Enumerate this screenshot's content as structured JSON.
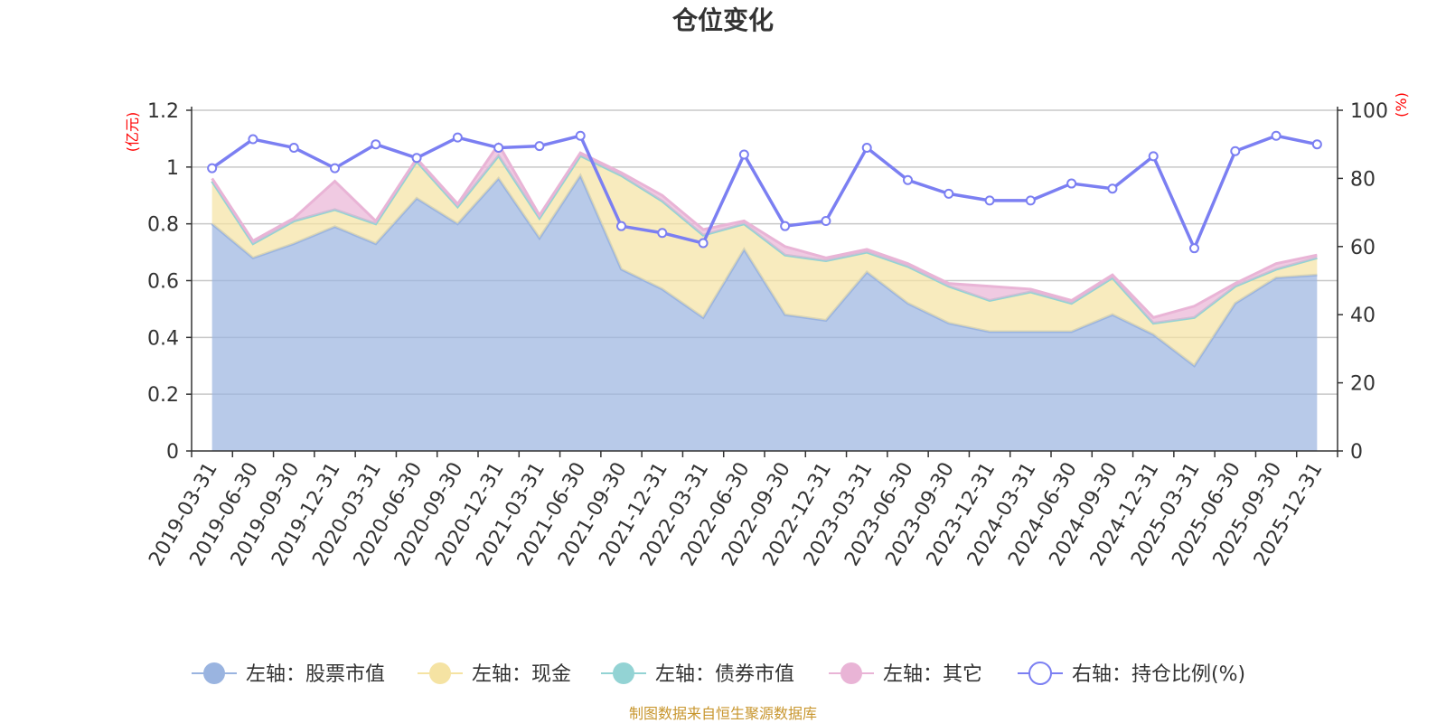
{
  "chart_data": {
    "type": "area",
    "title": "仓位变化",
    "left_axis": {
      "unit": "(亿元)",
      "ylim": [
        0,
        1.2
      ],
      "ticks": [
        "0",
        "0.2",
        "0.4",
        "0.6",
        "0.8",
        "1",
        "1.2"
      ]
    },
    "right_axis": {
      "unit": "(%)",
      "ylim": [
        0,
        100
      ],
      "ticks": [
        "0",
        "20",
        "40",
        "60",
        "80",
        "100"
      ]
    },
    "x": [
      "2019-03-31",
      "2019-06-30",
      "2019-09-30",
      "2019-12-31",
      "2020-03-31",
      "2020-06-30",
      "2020-09-30",
      "2020-12-31",
      "2021-03-31",
      "2021-06-30",
      "2021-09-30",
      "2021-12-31",
      "2022-03-31",
      "2022-06-30",
      "2022-09-30",
      "2022-12-31",
      "2023-03-31",
      "2023-06-30",
      "2023-09-30",
      "2023-12-31",
      "2024-03-31",
      "2024-06-30",
      "2024-09-30",
      "2024-12-31",
      "2025-03-31",
      "2025-06-30",
      "2025-09-30",
      "2025-12-31"
    ],
    "grid": true,
    "legend_position": "bottom",
    "series": [
      {
        "name": "左轴：股票市值",
        "axis": "left",
        "stack": "total",
        "type": "area",
        "color": "#9ab4e0",
        "values": [
          0.8,
          0.68,
          0.73,
          0.79,
          0.73,
          0.89,
          0.8,
          0.96,
          0.75,
          0.97,
          0.64,
          0.57,
          0.47,
          0.71,
          0.48,
          0.46,
          0.63,
          0.52,
          0.45,
          0.42,
          0.42,
          0.42,
          0.48,
          0.41,
          0.3,
          0.52,
          0.61,
          0.62
        ]
      },
      {
        "name": "左轴：现金",
        "axis": "left",
        "stack": "total",
        "type": "area",
        "color": "#f5e3a3",
        "values": [
          0.15,
          0.05,
          0.08,
          0.06,
          0.07,
          0.13,
          0.06,
          0.08,
          0.07,
          0.07,
          0.33,
          0.31,
          0.29,
          0.09,
          0.21,
          0.21,
          0.07,
          0.13,
          0.13,
          0.11,
          0.14,
          0.1,
          0.13,
          0.04,
          0.17,
          0.06,
          0.03,
          0.06
        ]
      },
      {
        "name": "左轴：债券市值",
        "axis": "left",
        "stack": "total",
        "type": "area",
        "color": "#93d3d4",
        "values": [
          0,
          0,
          0,
          0,
          0,
          0,
          0,
          0,
          0,
          0,
          0,
          0,
          0,
          0,
          0,
          0,
          0,
          0,
          0,
          0,
          0,
          0,
          0,
          0,
          0,
          0,
          0,
          0
        ]
      },
      {
        "name": "左轴：其它",
        "axis": "left",
        "stack": "total",
        "type": "area",
        "color": "#e9b4d6",
        "values": [
          0.01,
          0.01,
          0.01,
          0.1,
          0.01,
          0.01,
          0.01,
          0.04,
          0.01,
          0.01,
          0.01,
          0.02,
          0.02,
          0.01,
          0.03,
          0.01,
          0.01,
          0.01,
          0.01,
          0.05,
          0.01,
          0.01,
          0.01,
          0.02,
          0.04,
          0.01,
          0.02,
          0.01
        ]
      },
      {
        "name": "右轴：持仓比例(%)",
        "axis": "right",
        "type": "line",
        "color": "#7b7ff2",
        "values": [
          83,
          91.5,
          89,
          83,
          90,
          86,
          92,
          89,
          89.5,
          92.5,
          66,
          64,
          61,
          87,
          66,
          67.5,
          89,
          79.5,
          75.5,
          73.5,
          73.5,
          78.5,
          77,
          86.5,
          59.5,
          88,
          92.5,
          90
        ]
      }
    ],
    "source": "制图数据来自恒生聚源数据库"
  }
}
